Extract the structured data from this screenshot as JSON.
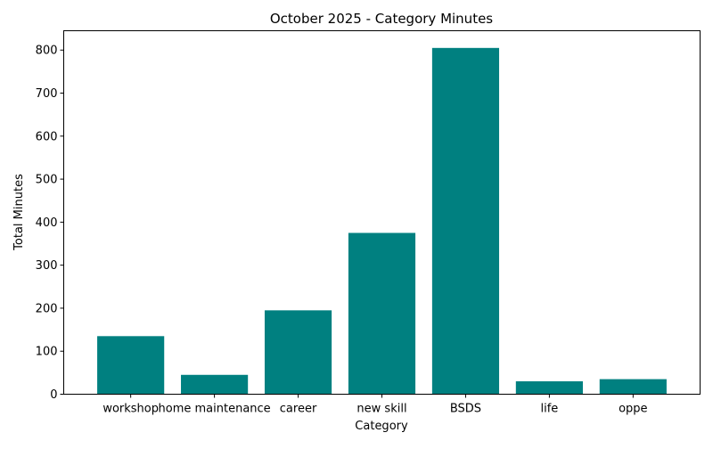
{
  "chart_data": {
    "type": "bar",
    "title": "October 2025 - Category Minutes",
    "xlabel": "Category",
    "ylabel": "Total Minutes",
    "categories": [
      "workshop",
      "home maintenance",
      "career",
      "new skill",
      "BSDS",
      "life",
      "oppe"
    ],
    "values": [
      135,
      45,
      195,
      375,
      805,
      30,
      35
    ],
    "ylim": [
      0,
      845
    ],
    "yticks": [
      0,
      100,
      200,
      300,
      400,
      500,
      600,
      700,
      800
    ],
    "ytick_labels": [
      "0",
      "100",
      "200",
      "300",
      "400",
      "500",
      "600",
      "700",
      "800"
    ],
    "grid": false,
    "bar_color": "#008080"
  }
}
